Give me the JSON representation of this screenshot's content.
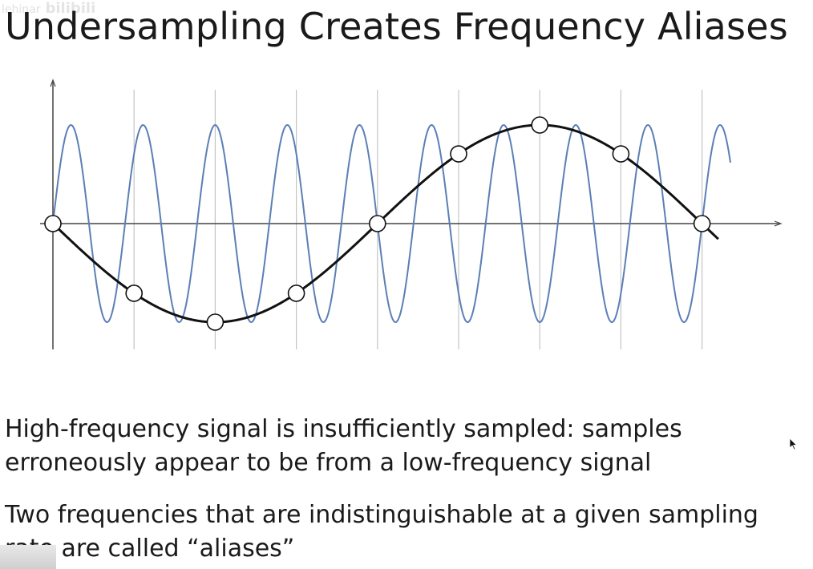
{
  "slide": {
    "title": "Undersampling Creates Frequency Aliases",
    "bullets": [
      "High-frequency signal is insufficiently sampled: samples\nerroneously appear to be from a low-frequency signal",
      "Two frequencies that are indistinguishable at a given sampling\nrate are called “aliases”"
    ]
  },
  "watermark": {
    "text": "lehinar",
    "logo": "bilibili"
  },
  "chart_data": {
    "type": "line",
    "xlim": [
      0,
      8.4
    ],
    "ylim": [
      -1.3,
      1.4
    ],
    "sample_x": [
      0,
      1,
      2,
      3,
      4,
      5,
      6,
      7,
      8
    ],
    "series": [
      {
        "kind": "high-frequency",
        "cycles_per_unit": 1.125,
        "color": "#5b7fb5",
        "x_end": 8.35
      },
      {
        "kind": "low-frequency",
        "cycles_per_unit": 0.125,
        "color": "#111111",
        "x_end": 8.2
      }
    ],
    "grid": "vertical-at-samples",
    "sample_marker_fill": "#ffffff"
  }
}
